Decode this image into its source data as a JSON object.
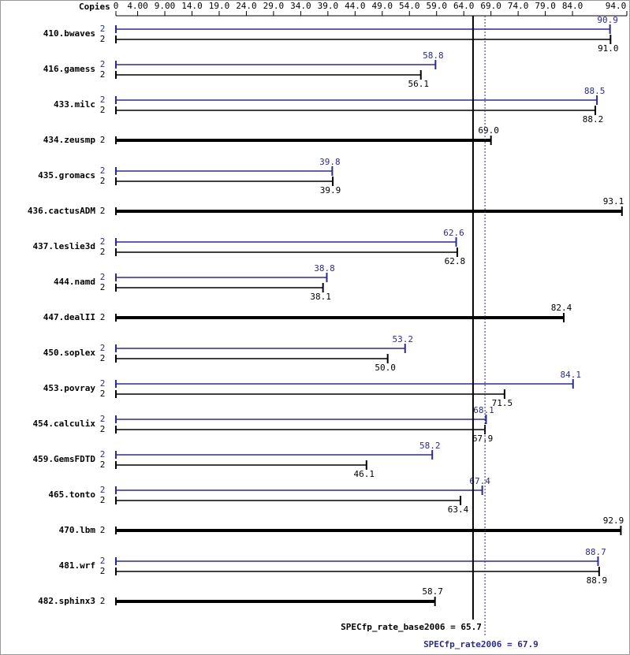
{
  "chart_data": {
    "type": "spec-bar",
    "axis_label": "Copies",
    "xlim": [
      0,
      94
    ],
    "xticks": [
      0,
      {
        "value": 4,
        "label": "4.00"
      },
      {
        "value": 9,
        "label": "9.00"
      },
      {
        "value": 14,
        "label": "14.0"
      },
      {
        "value": 19,
        "label": "19.0"
      },
      {
        "value": 24,
        "label": "24.0"
      },
      {
        "value": 29,
        "label": "29.0"
      },
      {
        "value": 34,
        "label": "34.0"
      },
      {
        "value": 39,
        "label": "39.0"
      },
      {
        "value": 44,
        "label": "44.0"
      },
      {
        "value": 49,
        "label": "49.0"
      },
      {
        "value": 54,
        "label": "54.0"
      },
      {
        "value": 59,
        "label": "59.0"
      },
      {
        "value": 64,
        "label": "64.0"
      },
      {
        "value": 69,
        "label": "69.0"
      },
      {
        "value": 74,
        "label": "74.0"
      },
      {
        "value": 79,
        "label": "79.0"
      },
      {
        "value": 84,
        "label": "84.0"
      },
      {
        "value": 94,
        "label": "94.0"
      }
    ],
    "categories": [
      "410.bwaves",
      "416.gamess",
      "433.milc",
      "434.zeusmp",
      "435.gromacs",
      "436.cactusADM",
      "437.leslie3d",
      "444.namd",
      "447.dealII",
      "450.soplex",
      "453.povray",
      "454.calculix",
      "459.GemsFDTD",
      "465.tonto",
      "470.lbm",
      "481.wrf",
      "482.sphinx3"
    ],
    "series": [
      {
        "color": "#2b2b8f",
        "copies": [
          2,
          2,
          2,
          null,
          2,
          null,
          2,
          2,
          null,
          2,
          2,
          2,
          2,
          2,
          null,
          2,
          null
        ],
        "values": [
          90.9,
          58.8,
          88.5,
          null,
          39.8,
          null,
          62.6,
          38.8,
          null,
          53.2,
          84.1,
          68.1,
          58.2,
          67.4,
          null,
          88.7,
          null
        ],
        "value_labels": [
          "90.9",
          "58.8",
          "88.5",
          null,
          "39.8",
          null,
          "62.6",
          "38.8",
          null,
          "53.2",
          "84.1",
          "68.1",
          "58.2",
          "67.4",
          null,
          "88.7",
          null
        ]
      },
      {
        "color": "#000000",
        "copies": [
          2,
          2,
          2,
          2,
          2,
          2,
          2,
          2,
          2,
          2,
          2,
          2,
          2,
          2,
          2,
          2,
          2
        ],
        "values": [
          91.0,
          56.1,
          88.2,
          69.0,
          39.9,
          93.1,
          62.8,
          38.1,
          82.4,
          50.0,
          71.5,
          67.9,
          46.1,
          63.4,
          92.9,
          88.9,
          58.7
        ],
        "value_labels": [
          "91.0",
          "56.1",
          "88.2",
          "69.0",
          "39.9",
          "93.1",
          "62.8",
          "38.1",
          "82.4",
          "50.0",
          "71.5",
          "67.9",
          "46.1",
          "63.4",
          "92.9",
          "88.9",
          "58.7"
        ]
      }
    ],
    "reference_lines": [
      {
        "label": "SPECfp_rate_base2006 = 65.7",
        "value": 65.7,
        "color": "#000000",
        "dashed": false
      },
      {
        "label": "SPECfp_rate2006 = 67.9",
        "value": 67.9,
        "color": "#2b2b8f",
        "dashed": true
      }
    ]
  }
}
